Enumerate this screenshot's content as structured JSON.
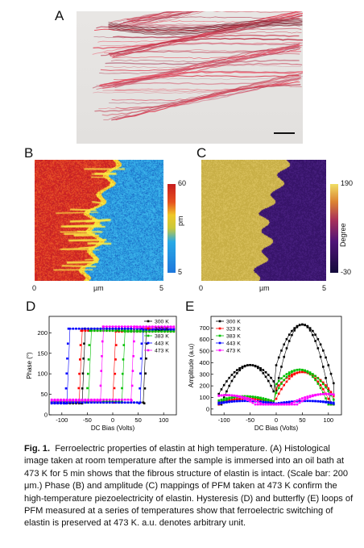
{
  "panel_labels": {
    "a": "A",
    "b": "B",
    "c": "C",
    "d": "D",
    "e": "E"
  },
  "mapB": {
    "xaxis_label": "µm",
    "x_min": "0",
    "x_max": "5",
    "colorbar_max": "60",
    "colorbar_min": "5",
    "colorbar_unit": "pm"
  },
  "mapC": {
    "xaxis_label": "µm",
    "x_min": "0",
    "x_max": "5",
    "colorbar_max": "190",
    "colorbar_min": "-30",
    "colorbar_unit": "Degree"
  },
  "caption": {
    "fig_label": "Fig. 1.",
    "title": "Ferroelectric properties of elastin at high temperature.",
    "body": "(A) Histological image taken at room temperature after the sample is immersed into an oil bath at 473 K for 5 min shows that the fibrous structure of elastin is intact. (Scale bar: 200 μm.) Phase (B) and amplitude (C) mappings of PFM taken at 473 K confirm the high-temperature piezoelectricity of elastin. Hysteresis (D) and butterfly (E) loops of PFM measured at a series of temperatures show that ferroelectric switching of elastin is preserved at 473 K. a.u. denotes arbitrary unit."
  },
  "chart_data": [
    {
      "type": "scatter",
      "panel": "D",
      "xlabel": "DC Bias (Volts)",
      "ylabel": "Phase (°)",
      "xlim": [
        -125,
        125
      ],
      "ylim": [
        0,
        240
      ],
      "xticks": [
        -100,
        -50,
        0,
        50,
        100
      ],
      "yticks": [
        0,
        50,
        100,
        150,
        200
      ],
      "legend_position": "top-right",
      "series": [
        {
          "name": "300 K",
          "color": "#000000",
          "down_switch": -58,
          "up_switch": 65,
          "high": 210,
          "low": 28
        },
        {
          "name": "323 K",
          "color": "#ff0000",
          "down_switch": -65,
          "up_switch": 5,
          "high": 205,
          "low": 30
        },
        {
          "name": "383 K",
          "color": "#00c000",
          "down_switch": -48,
          "up_switch": 20,
          "high": 205,
          "low": 30
        },
        {
          "name": "443 K",
          "color": "#0000ff",
          "down_switch": -90,
          "up_switch": 55,
          "high": 210,
          "low": 28
        },
        {
          "name": "473 K",
          "color": "#ff00ff",
          "down_switch": -22,
          "up_switch": 40,
          "high": 215,
          "low": 35
        }
      ]
    },
    {
      "type": "scatter",
      "panel": "E",
      "xlabel": "DC Bias (Volts)",
      "ylabel": "Amplitude (a.u)",
      "xlim": [
        -125,
        125
      ],
      "ylim": [
        -50,
        800
      ],
      "xticks": [
        -100,
        -50,
        0,
        50,
        100
      ],
      "yticks": [
        0,
        100,
        200,
        300,
        400,
        500,
        600,
        700
      ],
      "legend_position": "top-left",
      "series": [
        {
          "name": "300 K",
          "color": "#000000",
          "peak_pos": [
            50,
            730
          ],
          "peak_neg": [
            -50,
            380
          ]
        },
        {
          "name": "323 K",
          "color": "#ff0000",
          "peak_pos": [
            50,
            320
          ],
          "peak_neg": [
            -55,
            90
          ]
        },
        {
          "name": "383 K",
          "color": "#00c000",
          "peak_pos": [
            45,
            340
          ],
          "peak_neg": [
            -60,
            110
          ]
        },
        {
          "name": "443 K",
          "color": "#0000ff",
          "peak_pos": [
            60,
            70
          ],
          "peak_neg": [
            -60,
            70
          ]
        },
        {
          "name": "473 K",
          "color": "#ff00ff",
          "peak_pos": [
            95,
            130
          ],
          "peak_neg": [
            -95,
            120
          ]
        }
      ]
    }
  ]
}
